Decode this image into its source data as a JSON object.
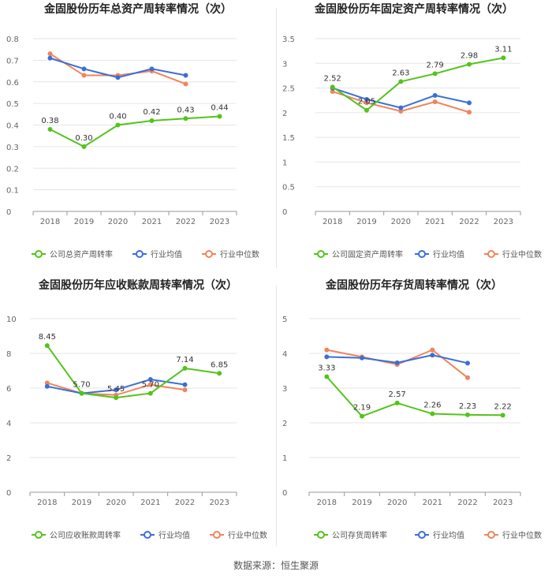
{
  "source_text": "数据来源：恒生聚源",
  "legend_labels": {
    "industry_avg": "行业均值",
    "industry_median": "行业中位数"
  },
  "colors": {
    "company": "#52c41a",
    "industry_avg": "#3a6fd8",
    "industry_median": "#f0845c"
  },
  "chart_data": [
    {
      "type": "line",
      "title": "金固股份历年总资产周转率情况（次）",
      "categories": [
        "2018",
        "2019",
        "2020",
        "2021",
        "2022",
        "2023"
      ],
      "ylim": [
        0,
        0.8
      ],
      "yticks": [
        0,
        0.1,
        0.2,
        0.3,
        0.4,
        0.5,
        0.6,
        0.7,
        0.8
      ],
      "ytick_labels": [
        "0",
        "0.1",
        "0.2",
        "0.3",
        "0.4",
        "0.5",
        "0.6",
        "0.7",
        "0.8"
      ],
      "series": [
        {
          "name": "公司总资产周转率",
          "values": [
            0.38,
            0.3,
            0.4,
            0.42,
            0.43,
            0.44
          ],
          "labels": [
            "0.38",
            "0.30",
            "0.40",
            "0.42",
            "0.43",
            "0.44"
          ]
        },
        {
          "name": "行业均值",
          "values": [
            0.71,
            0.66,
            0.62,
            0.66,
            0.63,
            null
          ]
        },
        {
          "name": "行业中位数",
          "values": [
            0.73,
            0.63,
            0.63,
            0.65,
            0.59,
            null
          ]
        }
      ]
    },
    {
      "type": "line",
      "title": "金固股份历年固定资产周转率情况（次）",
      "categories": [
        "2018",
        "2019",
        "2020",
        "2021",
        "2022",
        "2023"
      ],
      "ylim": [
        0,
        3.5
      ],
      "yticks": [
        0,
        0.5,
        1,
        1.5,
        2,
        2.5,
        3,
        3.5
      ],
      "ytick_labels": [
        "0",
        "0.5",
        "1",
        "1.5",
        "2",
        "2.5",
        "3",
        "3.5"
      ],
      "series": [
        {
          "name": "公司固定资产周转率",
          "values": [
            2.52,
            2.05,
            2.63,
            2.79,
            2.98,
            3.11
          ],
          "labels": [
            "2.52",
            "2.05",
            "2.63",
            "2.79",
            "2.98",
            "3.11"
          ]
        },
        {
          "name": "行业均值",
          "values": [
            2.5,
            2.27,
            2.1,
            2.35,
            2.2,
            null
          ]
        },
        {
          "name": "行业中位数",
          "values": [
            2.43,
            2.2,
            2.03,
            2.22,
            2.01,
            null
          ]
        }
      ]
    },
    {
      "type": "line",
      "title": "金固股份历年应收账款周转率情况（次）",
      "categories": [
        "2018",
        "2019",
        "2020",
        "2021",
        "2022",
        "2023"
      ],
      "ylim": [
        0,
        10
      ],
      "yticks": [
        0,
        2,
        4,
        6,
        8,
        10
      ],
      "ytick_labels": [
        "0",
        "2",
        "4",
        "6",
        "8",
        "10"
      ],
      "series": [
        {
          "name": "公司应收账款周转率",
          "values": [
            8.45,
            5.7,
            5.45,
            5.7,
            7.14,
            6.85
          ],
          "labels": [
            "8.45",
            "5.70",
            "5.45",
            "5.70",
            "7.14",
            "6.85"
          ]
        },
        {
          "name": "行业均值",
          "values": [
            6.1,
            5.7,
            5.9,
            6.5,
            6.2,
            null
          ]
        },
        {
          "name": "行业中位数",
          "values": [
            6.3,
            5.7,
            5.6,
            6.2,
            5.9,
            null
          ]
        }
      ]
    },
    {
      "type": "line",
      "title": "金固股份历年存货周转率情况（次）",
      "categories": [
        "2018",
        "2019",
        "2020",
        "2021",
        "2022",
        "2023"
      ],
      "ylim": [
        0,
        5
      ],
      "yticks": [
        0,
        1,
        2,
        3,
        4,
        5
      ],
      "ytick_labels": [
        "0",
        "1",
        "2",
        "3",
        "4",
        "5"
      ],
      "series": [
        {
          "name": "公司存货周转率",
          "values": [
            3.33,
            2.19,
            2.57,
            2.26,
            2.23,
            2.22
          ],
          "labels": [
            "3.33",
            "2.19",
            "2.57",
            "2.26",
            "2.23",
            "2.22"
          ]
        },
        {
          "name": "行业均值",
          "values": [
            3.9,
            3.87,
            3.73,
            3.95,
            3.72,
            null
          ]
        },
        {
          "name": "行业中位数",
          "values": [
            4.1,
            3.9,
            3.68,
            4.1,
            3.3,
            null
          ]
        }
      ]
    }
  ]
}
